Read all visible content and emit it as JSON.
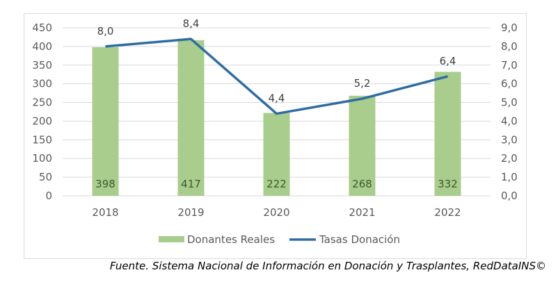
{
  "chart_data": {
    "type": "bar+line",
    "categories": [
      "2018",
      "2019",
      "2020",
      "2021",
      "2022"
    ],
    "series": [
      {
        "name": "Donantes Reales",
        "type": "bar",
        "axis": "left",
        "values": [
          398,
          417,
          222,
          268,
          332
        ],
        "color": "#a9cd8c"
      },
      {
        "name": "Tasas Donación",
        "type": "line",
        "axis": "right",
        "values": [
          8.0,
          8.4,
          4.4,
          5.2,
          6.4
        ],
        "color": "#2e6da4"
      }
    ],
    "bar_labels": [
      "398",
      "417",
      "222",
      "268",
      "332"
    ],
    "line_labels": [
      "8,0",
      "8,4",
      "4,4",
      "5,2",
      "6,4"
    ],
    "left_axis": {
      "range": [
        0,
        450
      ],
      "ticks": [
        "0",
        "50",
        "100",
        "150",
        "200",
        "250",
        "300",
        "350",
        "400",
        "450"
      ]
    },
    "right_axis": {
      "range": [
        0,
        9
      ],
      "ticks": [
        "0,0",
        "1,0",
        "2,0",
        "3,0",
        "4,0",
        "5,0",
        "6,0",
        "7,0",
        "8,0",
        "9,0"
      ]
    },
    "grid": true,
    "legend": "bottom",
    "legend_entries": [
      "Donantes Reales",
      "Tasas Donación"
    ]
  },
  "source": "Fuente. Sistema Nacional de Información en Donación y Trasplantes, RedDataINS©"
}
